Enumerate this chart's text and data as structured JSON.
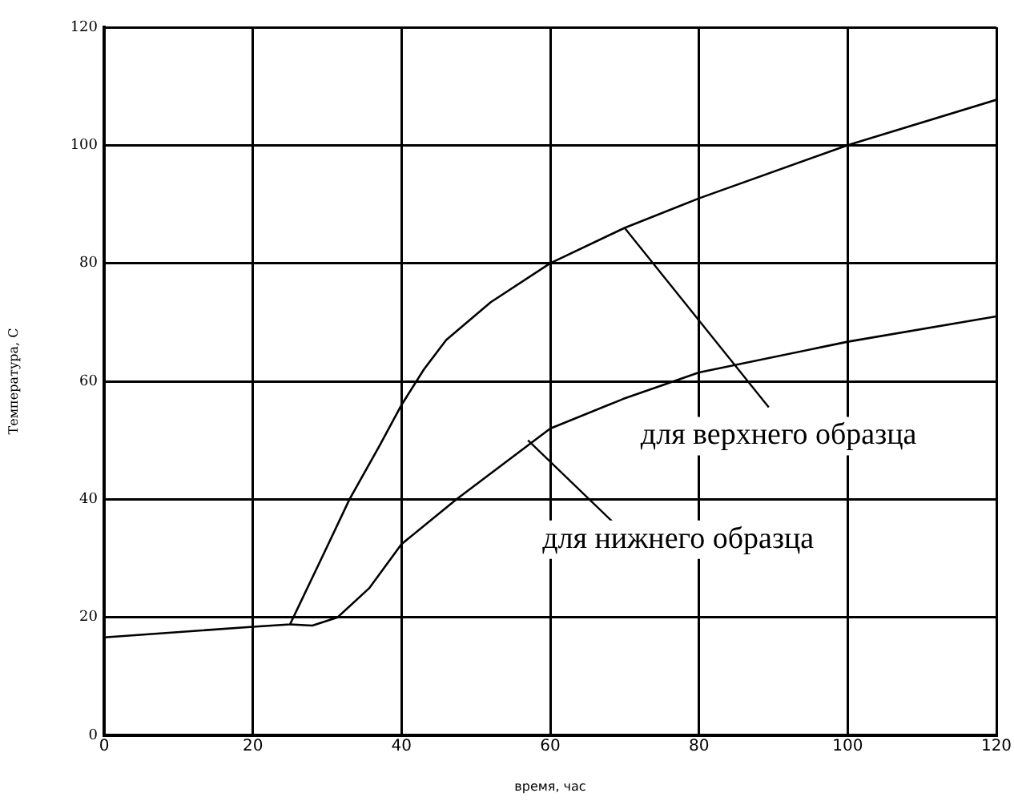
{
  "chart_data": {
    "type": "line",
    "xlabel": "время, час",
    "ylabel": "Температура, С",
    "xlim": [
      0,
      120
    ],
    "xticks": [
      0,
      20,
      40,
      60,
      80,
      100,
      120
    ],
    "ylim": [
      0,
      120
    ],
    "yticks": [
      0,
      20,
      40,
      60,
      80,
      100,
      120
    ],
    "grid": true,
    "legend": false,
    "marker": "none",
    "line_style": "solid",
    "series": [
      {
        "color": "#000000",
        "x": [
          0,
          20,
          25,
          30,
          33,
          37,
          40,
          43,
          46,
          52,
          60,
          70,
          80,
          100,
          120
        ],
        "values": [
          16.6,
          18.4,
          18.8,
          32,
          40,
          49,
          56,
          62,
          67,
          73.4,
          80,
          86,
          91,
          100,
          107.7
        ]
      },
      {
        "color": "#000000",
        "x": [
          25,
          28,
          31.4,
          35.7,
          40,
          47.4,
          60,
          69.8,
          80,
          100,
          120
        ],
        "values": [
          18.8,
          18.6,
          20,
          25,
          32.4,
          40,
          52,
          57,
          61.5,
          66.7,
          71
        ]
      }
    ],
    "annotations": [
      {
        "text": "для верхнего образца",
        "x": 70,
        "y": 86
      },
      {
        "text": "для нижнего образца",
        "x": 57,
        "y": 50
      }
    ]
  }
}
